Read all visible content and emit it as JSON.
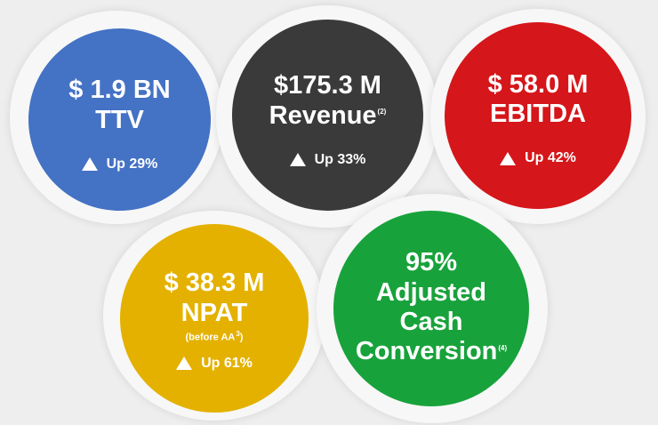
{
  "colors": {
    "ttv": "#4472c4",
    "revenue": "#3a3a3a",
    "ebitda": "#d5161a",
    "npat": "#e4b100",
    "cash": "#18a23b"
  },
  "metrics": {
    "ttv": {
      "line1": "$ 1.9 BN",
      "line2": "TTV",
      "change": "Up 29%"
    },
    "revenue": {
      "line1": "$175.3 M",
      "line2": "Revenue",
      "sup": "(2)",
      "change": "Up 33%"
    },
    "ebitda": {
      "line1": "$ 58.0 M",
      "line2": "EBITDA",
      "change": "Up 42%"
    },
    "npat": {
      "line1": "$ 38.3 M",
      "line2": "NPAT",
      "note": "(before AA",
      "note_sup": "3",
      "note_end": ")",
      "change": "Up 61%"
    },
    "cash": {
      "line1": "95%",
      "line2": "Adjusted",
      "line3": "Cash",
      "line4": "Conversion",
      "sup": "(4)"
    }
  },
  "icons": {
    "increase": "up-triangle-icon"
  }
}
